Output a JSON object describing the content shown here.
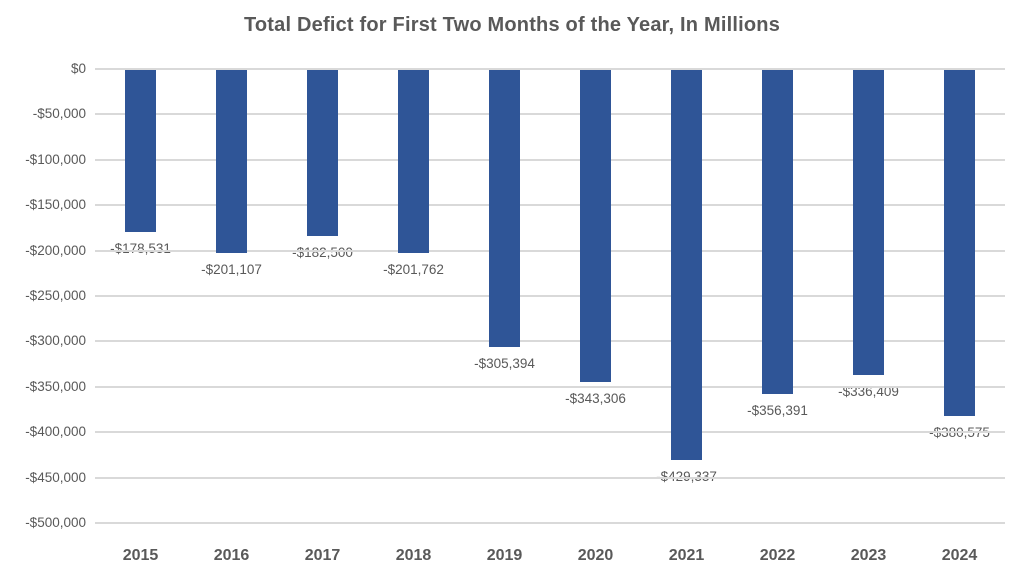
{
  "chart_data": {
    "type": "bar",
    "title": "Total Defict for First Two Months of the Year, In Millions",
    "categories": [
      "2015",
      "2016",
      "2017",
      "2018",
      "2019",
      "2020",
      "2021",
      "2022",
      "2023",
      "2024"
    ],
    "values": [
      -178531,
      -201107,
      -182500,
      -201762,
      -305394,
      -343306,
      -429337,
      -356391,
      -336409,
      -380575
    ],
    "data_labels": [
      "-$178,531",
      "-$201,107",
      "-$182,500",
      "-$201,762",
      "-$305,394",
      "-$343,306",
      "-$429,337",
      "-$356,391",
      "-$336,409",
      "-$380,575"
    ],
    "xlabel": "",
    "ylabel": "",
    "ylim": [
      -500000,
      0
    ],
    "y_tick_interval": 50000,
    "y_tick_labels": [
      "$0",
      "-$50,000",
      "-$100,000",
      "-$150,000",
      "-$200,000",
      "-$250,000",
      "-$300,000",
      "-$350,000",
      "-$400,000",
      "-$450,000",
      "-$500,000"
    ],
    "grid": true,
    "legend": false,
    "colors": {
      "bar": "#2f5597",
      "gridline": "#d9d9d9",
      "text": "#595959",
      "background": "#ffffff"
    }
  }
}
